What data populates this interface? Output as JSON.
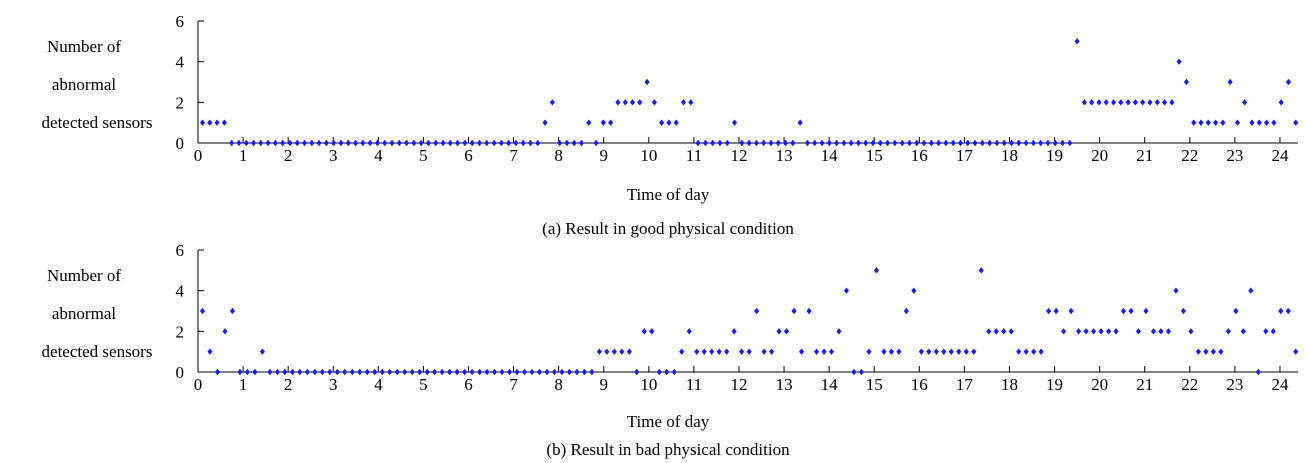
{
  "chart_data": [
    {
      "type": "scatter",
      "caption": "(a) Result in good physical condition",
      "xlabel": "Time of day",
      "ylabel_lines": [
        "Number of",
        "abnormal",
        "detected sensors"
      ],
      "xlim": [
        0,
        24.4
      ],
      "ylim": [
        0,
        6
      ],
      "xticks": [
        0,
        1,
        2,
        3,
        4,
        5,
        6,
        7,
        8,
        9,
        10,
        11,
        12,
        13,
        14,
        15,
        16,
        17,
        18,
        19,
        20,
        21,
        22,
        23,
        24
      ],
      "yticks": [
        0,
        2,
        4,
        6
      ],
      "marker_color": "#1a1aff",
      "values": [
        1,
        1,
        1,
        1,
        0,
        0,
        0,
        0,
        0,
        0,
        0,
        0,
        0,
        0,
        0,
        0,
        0,
        0,
        0,
        0,
        0,
        0,
        0,
        0,
        0,
        0,
        0,
        0,
        0,
        0,
        0,
        0,
        0,
        0,
        0,
        0,
        0,
        0,
        0,
        0,
        0,
        0,
        0,
        0,
        0,
        0,
        0,
        1,
        2,
        0,
        0,
        0,
        0,
        1,
        0,
        1,
        1,
        2,
        2,
        2,
        2,
        3,
        2,
        1,
        1,
        1,
        2,
        2,
        0,
        0,
        0,
        0,
        0,
        1,
        0,
        0,
        0,
        0,
        0,
        0,
        0,
        0,
        1,
        0,
        0,
        0,
        0,
        0,
        0,
        0,
        0,
        0,
        0,
        0,
        0,
        0,
        0,
        0,
        0,
        0,
        0,
        0,
        0,
        0,
        0,
        0,
        0,
        0,
        0,
        0,
        0,
        0,
        0,
        0,
        0,
        0,
        0,
        0,
        0,
        0,
        5,
        2,
        2,
        2,
        2,
        2,
        2,
        2,
        2,
        2,
        2,
        2,
        2,
        2,
        4,
        3,
        1,
        1,
        1,
        1,
        1,
        3,
        1,
        2,
        1,
        1,
        1,
        1,
        2,
        3,
        1
      ]
    },
    {
      "type": "scatter",
      "caption": "(b) Result in bad physical condition",
      "xlabel": "Time of day",
      "ylabel_lines": [
        "Number of",
        "abnormal",
        "detected sensors"
      ],
      "xlim": [
        0,
        24.4
      ],
      "ylim": [
        0,
        6
      ],
      "xticks": [
        0,
        1,
        2,
        3,
        4,
        5,
        6,
        7,
        8,
        9,
        10,
        11,
        12,
        13,
        14,
        15,
        16,
        17,
        18,
        19,
        20,
        21,
        22,
        23,
        24
      ],
      "yticks": [
        0,
        2,
        4,
        6
      ],
      "marker_color": "#1a1aff",
      "values": [
        3,
        1,
        0,
        2,
        3,
        0,
        0,
        0,
        1,
        0,
        0,
        0,
        0,
        0,
        0,
        0,
        0,
        0,
        0,
        0,
        0,
        0,
        0,
        0,
        0,
        0,
        0,
        0,
        0,
        0,
        0,
        0,
        0,
        0,
        0,
        0,
        0,
        0,
        0,
        0,
        0,
        0,
        0,
        0,
        0,
        0,
        0,
        0,
        0,
        0,
        0,
        0,
        0,
        1,
        1,
        1,
        1,
        1,
        0,
        2,
        2,
        0,
        0,
        0,
        1,
        2,
        1,
        1,
        1,
        1,
        1,
        2,
        1,
        1,
        3,
        1,
        1,
        2,
        2,
        3,
        1,
        3,
        1,
        1,
        1,
        2,
        4,
        0,
        0,
        1,
        5,
        1,
        1,
        1,
        3,
        4,
        1,
        1,
        1,
        1,
        1,
        1,
        1,
        1,
        5,
        2,
        2,
        2,
        2,
        1,
        1,
        1,
        1,
        3,
        3,
        2,
        3,
        2,
        2,
        2,
        2,
        2,
        2,
        3,
        3,
        2,
        3,
        2,
        2,
        2,
        4,
        3,
        2,
        1,
        1,
        1,
        1,
        2,
        3,
        2,
        4,
        0,
        2,
        2,
        3,
        3,
        1
      ]
    }
  ]
}
